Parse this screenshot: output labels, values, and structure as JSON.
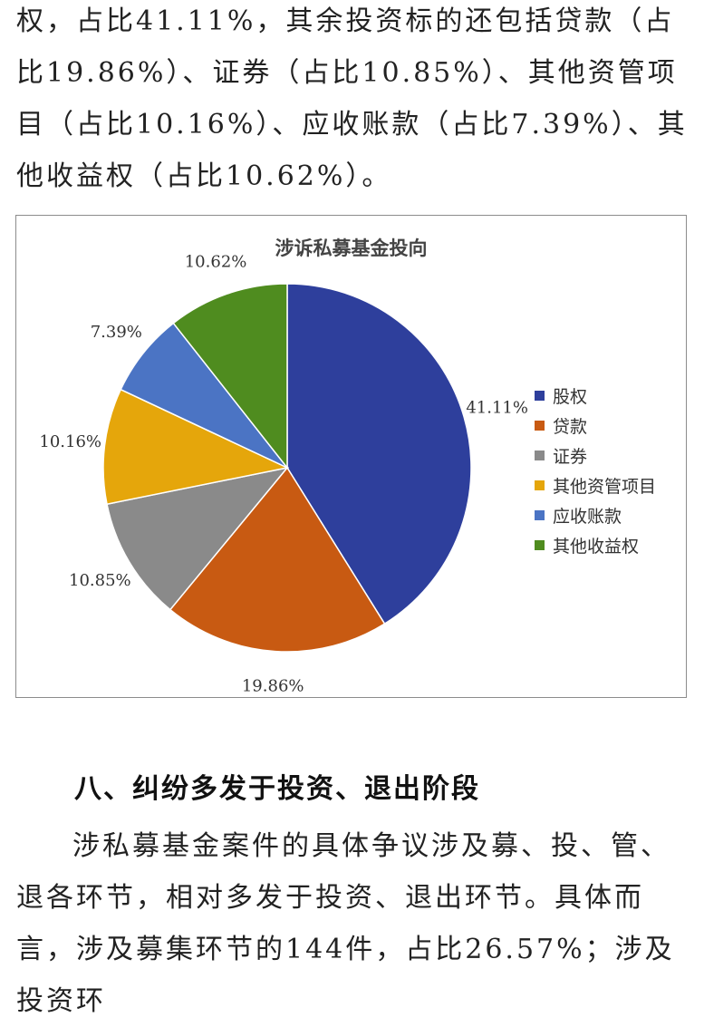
{
  "intro_text": "权，占比41.11%，其余投资标的还包括贷款（占比19.86%）、证券（占比10.85%）、其他资管项目（占比10.16%）、应收账款（占比7.39%）、其他收益权（占比10.62%）。",
  "chart_data": {
    "type": "pie",
    "title": "涉诉私募基金投向",
    "categories": [
      "股权",
      "贷款",
      "证券",
      "其他资管项目",
      "应收账款",
      "其他收益权"
    ],
    "values": [
      41.11,
      19.86,
      10.85,
      10.16,
      7.39,
      10.62
    ],
    "value_labels": [
      "41.11%",
      "19.86%",
      "10.85%",
      "10.16%",
      "7.39%",
      "10.62%"
    ],
    "colors": [
      "#2e3f9c",
      "#c85a12",
      "#8a8a8a",
      "#e5a60b",
      "#4b74c4",
      "#4f8c1f"
    ],
    "legend": "right"
  },
  "section_heading": "八、纠纷多发于投资、退出阶段",
  "body_text": "涉私募基金案件的具体争议涉及募、投、管、退各环节，相对多发于投资、退出环节。具体而言，涉及募集环节的144件，占比26.57%；涉及投资环"
}
